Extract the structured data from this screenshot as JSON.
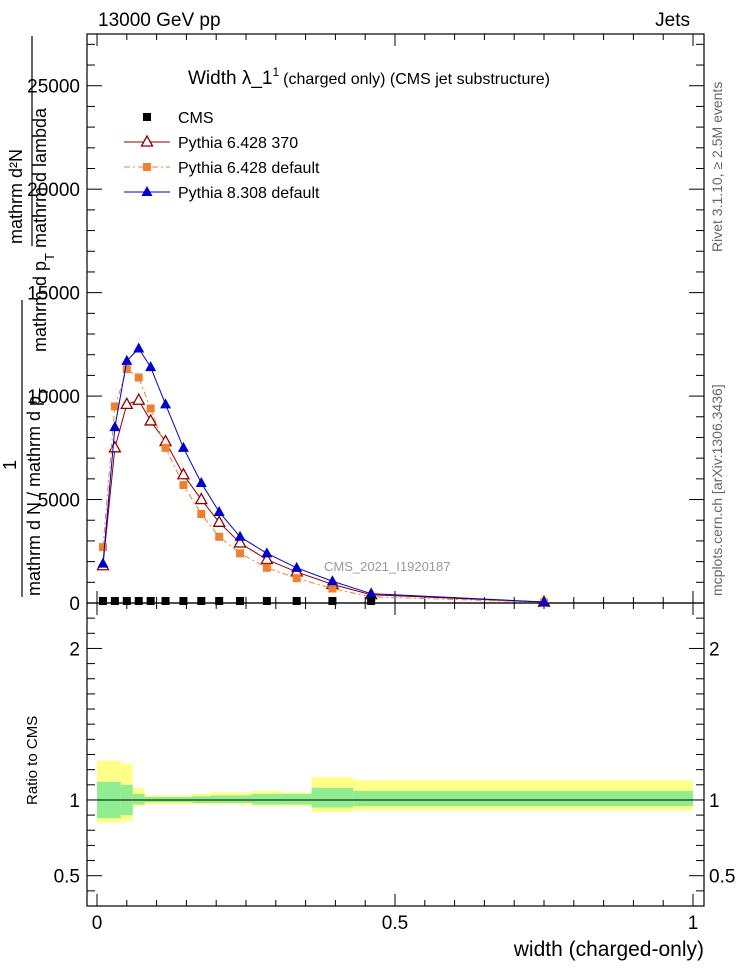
{
  "header": {
    "left": "13000 GeV pp",
    "right": "Jets"
  },
  "title_main": "Width λ_1",
  "title_sup": "1",
  "title_rest": "(charged only) (CMS jet substructure)",
  "side_right_top": "Rivet 3.1.10, ≥ 2.5M events",
  "side_right_bottom": "mcplots.cern.ch [arXiv:1306.3436]",
  "watermark": "CMS_2021_I1920187",
  "ylabel_upper": {
    "numerator": "mathrm d²N",
    "sub_num": "mathrm d p",
    "sub_num_T": "T",
    "sub_num_end": " mathrm d lambda",
    "one": "1",
    "denominator": "mathrm d N / mathrm d p",
    "den_T": "T"
  },
  "ylabel_lower": "Ratio to CMS",
  "xlabel": "width (charged-only)",
  "legend": [
    {
      "label": "CMS",
      "color": "#000000",
      "marker": "square-filled"
    },
    {
      "label": "Pythia 6.428 370",
      "color": "#8b0000",
      "marker": "triangle-open"
    },
    {
      "label": "Pythia 6.428 default",
      "color": "#f08030",
      "marker": "square-filled"
    },
    {
      "label": "Pythia 8.308 default",
      "color": "#0000cc",
      "marker": "triangle-filled"
    }
  ],
  "chart_data": {
    "type": "line",
    "xlim": [
      0,
      1
    ],
    "ylim": [
      0,
      27500
    ],
    "x_ticks": [
      "0",
      "0.5",
      "1"
    ],
    "y_ticks": [
      "0",
      "5000",
      "10000",
      "15000",
      "20000",
      "25000"
    ],
    "ratio_ylim": [
      0.3,
      2.3
    ],
    "ratio_ticks": [
      "0.5",
      "1",
      "2"
    ],
    "cms": {
      "x": [
        0.01,
        0.03,
        0.05,
        0.07,
        0.09,
        0.115,
        0.145,
        0.175,
        0.205,
        0.24,
        0.285,
        0.335,
        0.395,
        0.46
      ],
      "y": [
        0,
        0,
        0,
        0,
        0,
        0,
        0,
        0,
        0,
        0,
        0,
        0,
        0,
        0
      ]
    },
    "series": [
      {
        "name": "Pythia 6.428 370",
        "color": "#8b0000",
        "x": [
          0.01,
          0.03,
          0.05,
          0.07,
          0.09,
          0.115,
          0.145,
          0.175,
          0.205,
          0.24,
          0.285,
          0.335,
          0.395,
          0.46,
          0.75
        ],
        "y": [
          1800,
          7500,
          9600,
          9800,
          8800,
          7800,
          6200,
          5000,
          3900,
          2900,
          2100,
          1500,
          900,
          400,
          40
        ]
      },
      {
        "name": "Pythia 6.428 default",
        "color": "#f08030",
        "x": [
          0.01,
          0.03,
          0.05,
          0.07,
          0.09,
          0.115,
          0.145,
          0.175,
          0.205,
          0.24,
          0.285,
          0.335,
          0.395,
          0.46,
          0.75
        ],
        "y": [
          2700,
          9500,
          11300,
          10900,
          9400,
          7500,
          5700,
          4300,
          3200,
          2400,
          1700,
          1200,
          700,
          300,
          30
        ]
      },
      {
        "name": "Pythia 8.308 default",
        "color": "#0000cc",
        "x": [
          0.01,
          0.03,
          0.05,
          0.07,
          0.09,
          0.115,
          0.145,
          0.175,
          0.205,
          0.24,
          0.285,
          0.335,
          0.395,
          0.46,
          0.75
        ],
        "y": [
          1900,
          8500,
          11700,
          12300,
          11400,
          9600,
          7500,
          5800,
          4400,
          3200,
          2400,
          1700,
          1050,
          450,
          50
        ]
      }
    ],
    "ratio_bands": [
      {
        "x0": 0.0,
        "x1": 0.04,
        "green": [
          0.88,
          1.12
        ],
        "yellow": [
          0.85,
          1.26
        ]
      },
      {
        "x0": 0.04,
        "x1": 0.06,
        "green": [
          0.9,
          1.1
        ],
        "yellow": [
          0.86,
          1.24
        ]
      },
      {
        "x0": 0.06,
        "x1": 0.08,
        "green": [
          0.97,
          1.04
        ],
        "yellow": [
          0.96,
          1.08
        ]
      },
      {
        "x0": 0.08,
        "x1": 0.16,
        "green": [
          0.985,
          1.02
        ],
        "yellow": [
          0.97,
          1.03
        ]
      },
      {
        "x0": 0.16,
        "x1": 0.19,
        "green": [
          0.98,
          1.025
        ],
        "yellow": [
          0.97,
          1.04
        ]
      },
      {
        "x0": 0.19,
        "x1": 0.26,
        "green": [
          0.98,
          1.03
        ],
        "yellow": [
          0.97,
          1.05
        ]
      },
      {
        "x0": 0.26,
        "x1": 0.31,
        "green": [
          0.97,
          1.04
        ],
        "yellow": [
          0.96,
          1.06
        ]
      },
      {
        "x0": 0.31,
        "x1": 0.36,
        "green": [
          0.97,
          1.04
        ],
        "yellow": [
          0.96,
          1.05
        ]
      },
      {
        "x0": 0.36,
        "x1": 0.43,
        "green": [
          0.95,
          1.08
        ],
        "yellow": [
          0.92,
          1.15
        ]
      },
      {
        "x0": 0.43,
        "x1": 1.0,
        "green": [
          0.96,
          1.06
        ],
        "yellow": [
          0.93,
          1.13
        ]
      }
    ]
  }
}
